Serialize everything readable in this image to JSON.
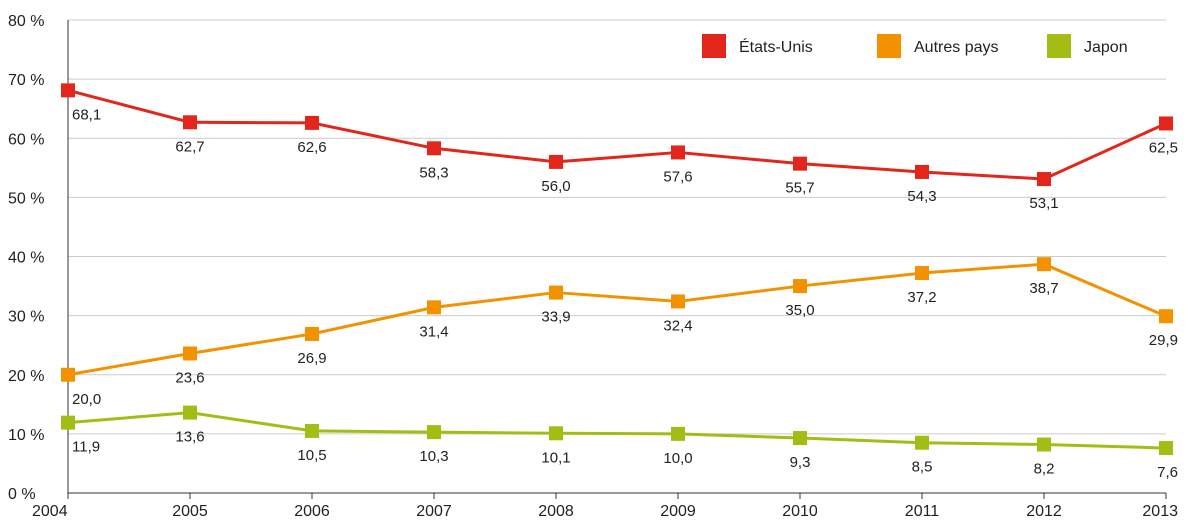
{
  "chart_data": {
    "type": "line",
    "title": "",
    "xlabel": "",
    "ylabel": "",
    "x": [
      "2004",
      "2005",
      "2006",
      "2007",
      "2008",
      "2009",
      "2010",
      "2011",
      "2012",
      "2013"
    ],
    "ylim": [
      0,
      80
    ],
    "yticks": [
      "0 %",
      "10 %",
      "20 %",
      "30 %",
      "40 %",
      "50 %",
      "60 %",
      "70 %",
      "80 %"
    ],
    "grid": true,
    "legend_position": "top-right",
    "series": [
      {
        "name": "États-Unis",
        "color": "#e2261c",
        "values": [
          68.1,
          62.7,
          62.6,
          58.3,
          56.0,
          57.6,
          55.7,
          54.3,
          53.1,
          62.5
        ],
        "labels": [
          "68,1",
          "62,7",
          "62,6",
          "58,3",
          "56,0",
          "57,6",
          "55,7",
          "54,3",
          "53,1",
          "62,5"
        ]
      },
      {
        "name": "Autres pays",
        "color": "#f39200",
        "values": [
          20.0,
          23.6,
          26.9,
          31.4,
          33.9,
          32.4,
          35.0,
          37.2,
          38.7,
          29.9
        ],
        "labels": [
          "20,0",
          "23,6",
          "26,9",
          "31,4",
          "33,9",
          "32,4",
          "35,0",
          "37,2",
          "38,7",
          "29,9"
        ]
      },
      {
        "name": "Japon",
        "color": "#a4bd15",
        "values": [
          11.9,
          13.6,
          10.5,
          10.3,
          10.1,
          10.0,
          9.3,
          8.5,
          8.2,
          7.6
        ],
        "labels": [
          "11,9",
          "13,6",
          "10,5",
          "10,3",
          "10,1",
          "10,0",
          "9,3",
          "8,5",
          "8,2",
          "7,6"
        ]
      }
    ]
  }
}
